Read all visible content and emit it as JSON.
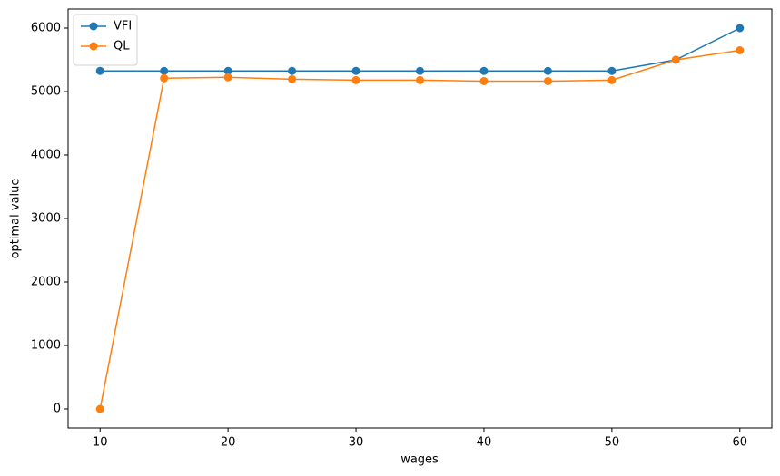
{
  "chart_data": {
    "type": "line",
    "x": [
      10,
      15,
      20,
      25,
      30,
      35,
      40,
      45,
      50,
      55,
      60
    ],
    "series": [
      {
        "name": "VFI",
        "color": "#1f77b4",
        "values": [
          5325,
          5325,
          5325,
          5325,
          5325,
          5325,
          5325,
          5325,
          5325,
          5500,
          6000
        ]
      },
      {
        "name": "QL",
        "color": "#ff7f0e",
        "values": [
          0,
          5210,
          5225,
          5195,
          5180,
          5180,
          5165,
          5165,
          5180,
          5500,
          5650
        ]
      }
    ],
    "xlabel": "wages",
    "ylabel": "optimal value",
    "xlim": [
      7.5,
      62.5
    ],
    "ylim": [
      -300,
      6300
    ],
    "xticks": [
      10,
      20,
      30,
      40,
      50,
      60
    ],
    "yticks": [
      0,
      1000,
      2000,
      3000,
      4000,
      5000,
      6000
    ],
    "legend": "upper-left",
    "marker": "circle",
    "grid": false
  }
}
